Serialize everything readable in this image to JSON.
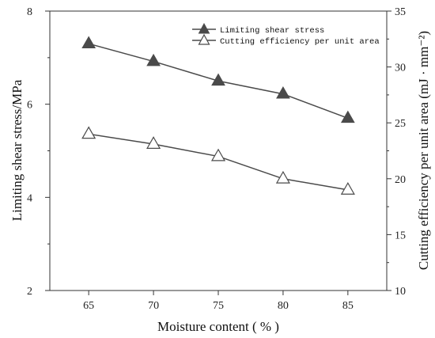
{
  "chart_data": {
    "type": "line",
    "x": [
      65,
      70,
      75,
      80,
      85
    ],
    "xlim": [
      62,
      88
    ],
    "xticks": [
      65,
      70,
      75,
      80,
      85
    ],
    "xlabel": "Moisture content ( % )",
    "y_left": {
      "label": "Limiting shear stress/MPa",
      "ylim": [
        2,
        8
      ],
      "ticks": [
        2,
        4,
        6,
        8
      ]
    },
    "y_right": {
      "label": "Cutting efficiency per unit area (mJ · mm⁻²)",
      "ylim": [
        10,
        35
      ],
      "ticks": [
        10,
        15,
        20,
        25,
        30,
        35
      ]
    },
    "series": [
      {
        "name": "Limiting shear stress",
        "axis": "left",
        "marker": "filled-triangle",
        "color": "#4a4a4a",
        "values": [
          7.3,
          6.92,
          6.5,
          6.22,
          5.7
        ]
      },
      {
        "name": "Cutting efficiency per unit area",
        "axis": "right",
        "marker": "open-triangle",
        "color": "#4a4a4a",
        "values": [
          24.0,
          23.1,
          22.0,
          20.0,
          19.0
        ]
      }
    ],
    "legend_position": "top-right",
    "grid": false
  }
}
